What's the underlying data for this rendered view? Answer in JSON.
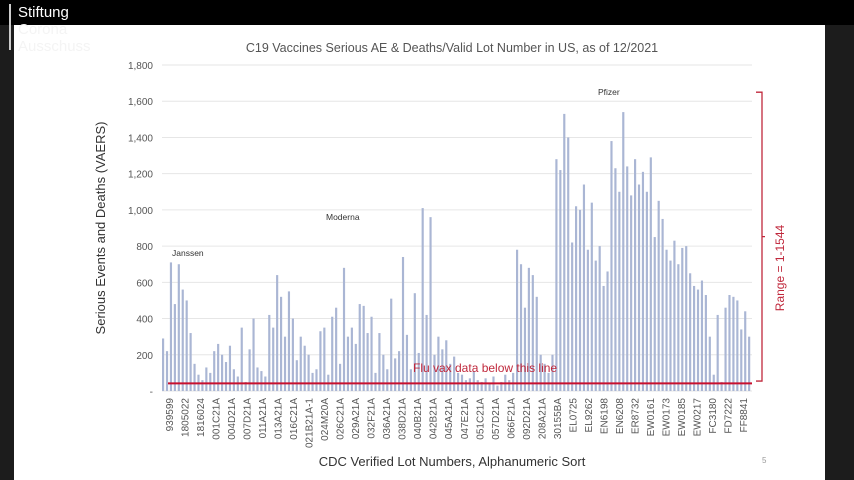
{
  "logo": {
    "line1": "Stiftung",
    "line2": "Corona",
    "line3": "Ausschuss"
  },
  "page_number": "5",
  "colors": {
    "bar": "#aab6d4",
    "redline": "#c8102e",
    "annot": "#c0283c",
    "grid": "#e6e6e6"
  },
  "chart_data": {
    "type": "bar",
    "title": "C19 Vaccines Serious AE & Deaths/Valid Lot Number in US, as of 12/2021",
    "xlabel": "CDC Verified Lot Numbers, Alphanumeric Sort",
    "ylabel": "Serious Events and Deaths (VAERS)",
    "ylim": [
      0,
      1800
    ],
    "yticks": [
      "-",
      "200",
      "400",
      "600",
      "800",
      "1,000",
      "1,200",
      "1,400",
      "1,600",
      "1,800"
    ],
    "xtick_labels": [
      "939599",
      "1805022",
      "1816024",
      "001C21A",
      "004D21A",
      "007D21A",
      "011A21A",
      "013A21A",
      "016C21A",
      "021B21A-1",
      "024M20A",
      "026C21A",
      "029A21A",
      "032F21A",
      "036A21A",
      "038D21A",
      "040B21A",
      "042B21A",
      "045A21A",
      "047E21A",
      "051C21A",
      "057D21A",
      "066F21A",
      "092D21A",
      "208A21A",
      "30155BA",
      "EL0725",
      "EL9262",
      "EN6198",
      "EN6208",
      "ER8732",
      "EW0161",
      "EW0173",
      "EW0185",
      "EW0217",
      "FC3180",
      "FD7222",
      "FF8841"
    ],
    "values": [
      290,
      220,
      710,
      480,
      700,
      560,
      500,
      320,
      150,
      90,
      60,
      130,
      100,
      220,
      260,
      200,
      160,
      250,
      120,
      80,
      350,
      50,
      230,
      400,
      130,
      110,
      80,
      420,
      350,
      640,
      520,
      300,
      550,
      400,
      170,
      300,
      250,
      200,
      100,
      120,
      330,
      350,
      90,
      410,
      460,
      150,
      680,
      300,
      350,
      260,
      480,
      470,
      320,
      410,
      100,
      320,
      200,
      120,
      510,
      180,
      220,
      740,
      310,
      120,
      540,
      210,
      1010,
      420,
      960,
      200,
      300,
      230,
      280,
      150,
      190,
      100,
      90,
      60,
      70,
      110,
      60,
      50,
      70,
      40,
      80,
      30,
      50,
      90,
      60,
      100,
      780,
      700,
      460,
      680,
      640,
      520,
      200,
      150,
      100,
      200,
      1280,
      1220,
      1530,
      1400,
      820,
      1020,
      1000,
      1140,
      780,
      1040,
      720,
      800,
      580,
      660,
      1380,
      1230,
      1100,
      1540,
      1240,
      1080,
      1280,
      1140,
      1210,
      1100,
      1290,
      850,
      1050,
      950,
      780,
      720,
      830,
      700,
      790,
      800,
      650,
      580,
      560,
      610,
      530,
      300,
      90,
      420,
      50,
      460,
      530,
      520,
      500,
      340,
      440,
      300
    ],
    "annotations": {
      "janssen": "Janssen",
      "moderna": "Moderna",
      "pfizer": "Pfizer",
      "flu_line": "Flu vax data below this line",
      "range": "Range = 1-1544"
    },
    "flu_line_value": 42,
    "range_values": [
      1,
      1544
    ],
    "grid": true
  }
}
